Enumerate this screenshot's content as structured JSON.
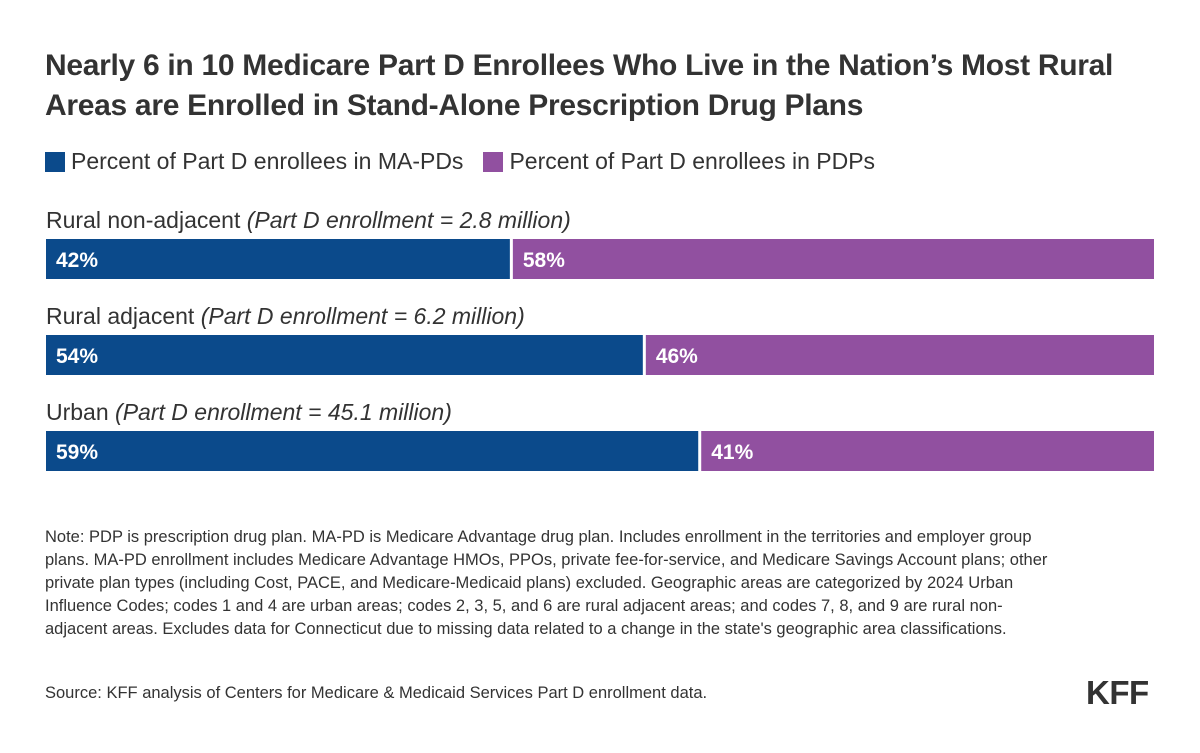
{
  "chart_data": {
    "type": "stacked-bar-horizontal",
    "title": "Nearly 6 in 10 Medicare Part D Enrollees Who Live in the Nation’s Most Rural Areas are Enrolled in Stand-Alone Prescription Drug Plans",
    "categories": [
      {
        "name": "Rural non-adjacent",
        "detail": "(Part D enrollment = 2.8 million)"
      },
      {
        "name": "Rural adjacent",
        "detail": "(Part D enrollment = 6.2 million)"
      },
      {
        "name": "Urban",
        "detail": "(Part D enrollment = 45.1 million)"
      }
    ],
    "series": [
      {
        "name": "Percent of Part D enrollees in MA-PDs",
        "color": "#0b4a8b",
        "values": [
          42,
          54,
          59
        ]
      },
      {
        "name": "Percent of Part D enrollees in PDPs",
        "color": "#9150a0",
        "values": [
          58,
          46,
          41
        ]
      }
    ],
    "value_suffix": "%",
    "xlim": [
      0,
      100
    ]
  },
  "note": "Note: PDP is prescription drug plan. MA-PD is Medicare Advantage drug plan. Includes enrollment in the territories and employer group plans. MA-PD enrollment includes Medicare Advantage HMOs, PPOs, private fee-for-service, and Medicare Savings Account plans; other private plan types (including Cost, PACE, and Medicare-Medicaid plans) excluded. Geographic areas are categorized by 2024 Urban Influence Codes; codes 1 and 4 are urban areas; codes 2, 3, 5, and 6 are rural adjacent areas; and codes 7, 8, and 9 are rural non-adjacent areas. Excludes data for Connecticut due to missing data related to a change in the state's geographic area classifications.",
  "source": "Source: KFF analysis of Centers for Medicare & Medicaid Services Part D enrollment data.",
  "logo": "KFF"
}
